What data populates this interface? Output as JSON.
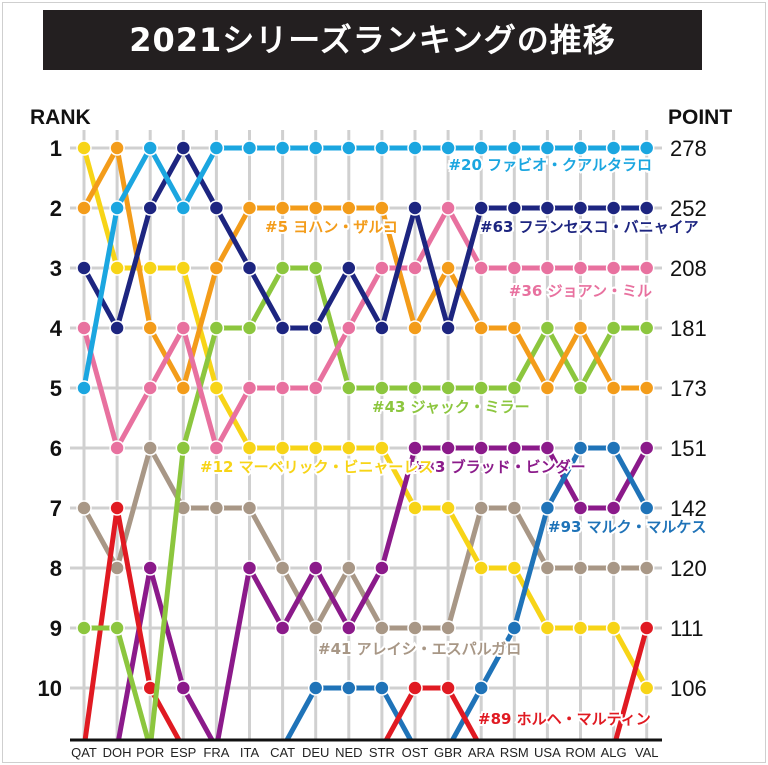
{
  "chart_data": {
    "type": "line",
    "title": "2021シリーズランキングの推移",
    "ylabel_left": "RANK",
    "ylabel_right": "POINT",
    "categories": [
      "QAT",
      "DOH",
      "POR",
      "ESP",
      "FRA",
      "ITA",
      "CAT",
      "DEU",
      "NED",
      "STR",
      "OST",
      "GBR",
      "ARA",
      "RSM",
      "USA",
      "ROM",
      "ALG",
      "VAL"
    ],
    "rank_ticks": [
      1,
      2,
      3,
      4,
      5,
      6,
      7,
      8,
      9,
      10
    ],
    "point_ticks": [
      278,
      252,
      208,
      181,
      173,
      151,
      142,
      120,
      111,
      106
    ],
    "ylim": [
      1,
      10
    ],
    "y_inverted": true,
    "grid": true,
    "series": [
      {
        "name": "#20 ファビオ・クアルタラロ",
        "color": "#1ba6e0",
        "values": [
          5,
          2,
          1,
          2,
          1,
          1,
          1,
          1,
          1,
          1,
          1,
          1,
          1,
          1,
          1,
          1,
          1,
          1
        ]
      },
      {
        "name": "#63 フランセスコ・バニャイア",
        "color": "#1d2580",
        "values": [
          3,
          4,
          2,
          1,
          2,
          3,
          4,
          4,
          3,
          4,
          2,
          4,
          2,
          2,
          2,
          2,
          2,
          2
        ]
      },
      {
        "name": "#36 ジョアン・ミル",
        "color": "#e8719f",
        "values": [
          4,
          6,
          5,
          4,
          6,
          5,
          5,
          5,
          4,
          3,
          3,
          2,
          3,
          3,
          3,
          3,
          3,
          3
        ]
      },
      {
        "name": "#5 ヨハン・ザルコ",
        "color": "#f39c1a",
        "values": [
          2,
          1,
          4,
          5,
          3,
          2,
          2,
          2,
          2,
          2,
          4,
          3,
          4,
          4,
          5,
          4,
          5,
          5
        ]
      },
      {
        "name": "#43 ジャック・ミラー",
        "color": "#8cc63e",
        "values": [
          9,
          9,
          null,
          6,
          4,
          4,
          3,
          3,
          5,
          5,
          5,
          5,
          5,
          5,
          4,
          5,
          4,
          4
        ]
      },
      {
        "name": "#33 ブラッド・ビンダー",
        "color": "#8b1a8a",
        "values": [
          null,
          null,
          8,
          10,
          null,
          8,
          9,
          8,
          9,
          8,
          6,
          6,
          6,
          6,
          6,
          7,
          7,
          6
        ]
      },
      {
        "name": "#93 マルク・マルケス",
        "color": "#1f73b8",
        "values": [
          null,
          null,
          null,
          null,
          null,
          null,
          null,
          10,
          10,
          10,
          null,
          null,
          10,
          9,
          7,
          6,
          6,
          7
        ]
      },
      {
        "name": "#41 アレイシ・エスパルガロ",
        "color": "#a89786",
        "values": [
          7,
          8,
          6,
          7,
          7,
          7,
          8,
          9,
          8,
          9,
          9,
          9,
          7,
          7,
          8,
          8,
          8,
          8
        ]
      },
      {
        "name": "#12 マーベリック・ビニャーレス",
        "color": "#f7d417",
        "values": [
          1,
          3,
          3,
          3,
          5,
          6,
          6,
          6,
          6,
          6,
          7,
          7,
          8,
          8,
          9,
          9,
          9,
          10
        ]
      },
      {
        "name": "#89 ホルヘ・マルティン",
        "color": "#e01a22",
        "values": [
          null,
          7,
          10,
          null,
          null,
          null,
          null,
          null,
          null,
          null,
          10,
          10,
          null,
          null,
          null,
          null,
          null,
          9
        ]
      }
    ]
  }
}
